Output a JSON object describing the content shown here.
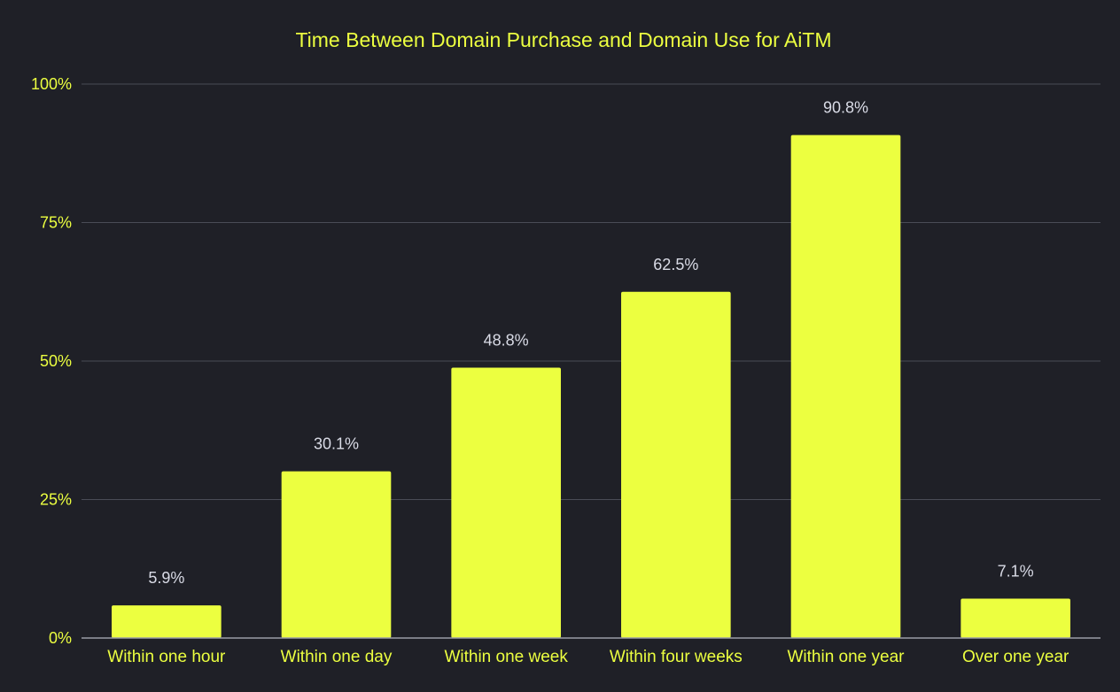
{
  "chart_data": {
    "type": "bar",
    "title": "Time Between Domain Purchase and Domain Use for AiTM",
    "xlabel": "",
    "ylabel": "",
    "categories": [
      "Within one hour",
      "Within one day",
      "Within one week",
      "Within four weeks",
      "Within one year",
      "Over one year"
    ],
    "values": [
      5.9,
      30.1,
      48.8,
      62.5,
      90.8,
      7.1
    ],
    "value_labels": [
      "5.9%",
      "30.1%",
      "48.8%",
      "62.5%",
      "90.8%",
      "7.1%"
    ],
    "ylim": [
      0,
      100
    ],
    "yticks": [
      0,
      25,
      50,
      75,
      100
    ],
    "ytick_labels": [
      "0%",
      "25%",
      "50%",
      "75%",
      "100%"
    ],
    "grid": true,
    "legend": "none"
  },
  "colors": {
    "background": "#1f2027",
    "bar": "#ecff40",
    "title": "#ecff40",
    "tick_label": "#ecff40",
    "value_label": "#d9dbe6",
    "grid": "#4a4c56",
    "axis": "#9a9ca6"
  }
}
